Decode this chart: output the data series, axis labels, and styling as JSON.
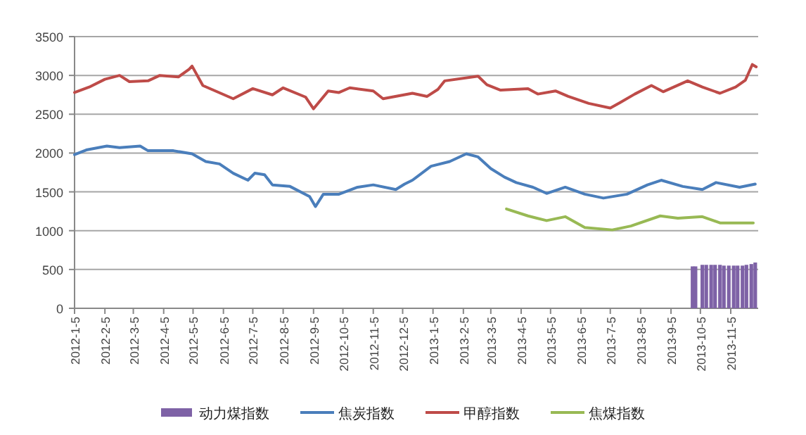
{
  "chart_data": {
    "type": "line",
    "ylim": [
      0,
      3500
    ],
    "yticks": [
      0,
      500,
      1000,
      1500,
      2000,
      2500,
      3000,
      3500
    ],
    "xlim": [
      "2012-01-05",
      "2013-12-03"
    ],
    "xticks": [
      {
        "value": "2012-01-05",
        "label": "2012-1-5"
      },
      {
        "value": "2012-02-05",
        "label": "2012-2-5"
      },
      {
        "value": "2012-03-05",
        "label": "2012-3-5"
      },
      {
        "value": "2012-04-05",
        "label": "2012-4-5"
      },
      {
        "value": "2012-05-05",
        "label": "2012-5-5"
      },
      {
        "value": "2012-06-05",
        "label": "2012-6-5"
      },
      {
        "value": "2012-07-05",
        "label": "2012-7-5"
      },
      {
        "value": "2012-08-05",
        "label": "2012-8-5"
      },
      {
        "value": "2012-09-05",
        "label": "2012-9-5"
      },
      {
        "value": "2012-10-05",
        "label": "2012-10-5"
      },
      {
        "value": "2012-11-05",
        "label": "2012-11-5"
      },
      {
        "value": "2012-12-05",
        "label": "2012-12-5"
      },
      {
        "value": "2013-01-05",
        "label": "2013-1-5"
      },
      {
        "value": "2013-02-05",
        "label": "2013-2-5"
      },
      {
        "value": "2013-03-05",
        "label": "2013-3-5"
      },
      {
        "value": "2013-04-05",
        "label": "2013-4-5"
      },
      {
        "value": "2013-05-05",
        "label": "2013-5-5"
      },
      {
        "value": "2013-06-05",
        "label": "2013-6-5"
      },
      {
        "value": "2013-07-05",
        "label": "2013-7-5"
      },
      {
        "value": "2013-08-05",
        "label": "2013-8-5"
      },
      {
        "value": "2013-09-05",
        "label": "2013-9-5"
      },
      {
        "value": "2013-10-05",
        "label": "2013-10-5"
      },
      {
        "value": "2013-11-05",
        "label": "2013-11-5"
      }
    ],
    "grid": "y",
    "legend": "bottom",
    "marker": "none",
    "series": [
      {
        "name": "动力煤指数",
        "type": "bar",
        "color": "#7e62a6",
        "x": [
          "2013-09-27",
          "2013-09-30",
          "2013-10-07",
          "2013-10-11",
          "2013-10-16",
          "2013-10-20",
          "2013-10-25",
          "2013-10-29",
          "2013-11-03",
          "2013-11-08",
          "2013-11-12",
          "2013-11-17",
          "2013-11-21",
          "2013-11-26",
          "2013-11-30"
        ],
        "values": [
          540,
          540,
          560,
          560,
          560,
          560,
          560,
          550,
          550,
          550,
          550,
          550,
          560,
          570,
          590
        ]
      },
      {
        "name": "焦炭指数",
        "color": "#4a7ebb",
        "x": [
          "2012-01-05",
          "2012-01-17",
          "2012-02-07",
          "2012-02-20",
          "2012-03-12",
          "2012-03-20",
          "2012-04-15",
          "2012-05-04",
          "2012-05-18",
          "2012-06-01",
          "2012-06-15",
          "2012-06-30",
          "2012-07-07",
          "2012-07-17",
          "2012-07-25",
          "2012-08-12",
          "2012-09-01",
          "2012-09-07",
          "2012-09-15",
          "2012-10-01",
          "2012-10-20",
          "2012-11-05",
          "2012-11-28",
          "2012-12-07",
          "2012-12-15",
          "2013-01-03",
          "2013-01-22",
          "2013-02-08",
          "2013-02-20",
          "2013-03-05",
          "2013-03-19",
          "2013-03-31",
          "2013-04-17",
          "2013-05-01",
          "2013-05-20",
          "2013-06-09",
          "2013-06-28",
          "2013-07-22",
          "2013-08-12",
          "2013-08-26",
          "2013-09-17",
          "2013-10-07",
          "2013-10-21",
          "2013-11-14",
          "2013-11-30"
        ],
        "values": [
          1980,
          2040,
          2090,
          2070,
          2090,
          2030,
          2030,
          1990,
          1890,
          1860,
          1740,
          1650,
          1740,
          1720,
          1590,
          1570,
          1440,
          1310,
          1470,
          1470,
          1560,
          1590,
          1530,
          1600,
          1650,
          1830,
          1890,
          1990,
          1950,
          1800,
          1690,
          1620,
          1560,
          1480,
          1560,
          1470,
          1420,
          1470,
          1590,
          1650,
          1570,
          1530,
          1620,
          1560,
          1600
        ]
      },
      {
        "name": "甲醇指数",
        "color": "#be4b48",
        "x": [
          "2012-01-05",
          "2012-01-20",
          "2012-02-05",
          "2012-02-20",
          "2012-03-01",
          "2012-03-20",
          "2012-04-01",
          "2012-04-20",
          "2012-05-01",
          "2012-05-04",
          "2012-05-15",
          "2012-06-15",
          "2012-07-05",
          "2012-07-25",
          "2012-08-05",
          "2012-08-28",
          "2012-09-05",
          "2012-09-20",
          "2012-10-01",
          "2012-10-12",
          "2012-11-05",
          "2012-11-15",
          "2012-12-15",
          "2012-12-30",
          "2013-01-10",
          "2013-01-17",
          "2013-02-20",
          "2013-03-01",
          "2013-03-15",
          "2013-04-12",
          "2013-04-22",
          "2013-05-10",
          "2013-05-23",
          "2013-06-13",
          "2013-07-05",
          "2013-07-15",
          "2013-07-30",
          "2013-08-16",
          "2013-08-28",
          "2013-09-22",
          "2013-10-07",
          "2013-10-25",
          "2013-11-10",
          "2013-11-20",
          "2013-11-27",
          "2013-12-01"
        ],
        "values": [
          2780,
          2850,
          2950,
          3000,
          2920,
          2930,
          3000,
          2980,
          3080,
          3120,
          2870,
          2700,
          2830,
          2750,
          2840,
          2720,
          2570,
          2800,
          2780,
          2840,
          2800,
          2700,
          2770,
          2730,
          2820,
          2930,
          2990,
          2880,
          2810,
          2830,
          2760,
          2800,
          2730,
          2640,
          2580,
          2650,
          2760,
          2870,
          2790,
          2930,
          2850,
          2770,
          2850,
          2940,
          3140,
          3110
        ]
      },
      {
        "name": "焦煤指数",
        "color": "#98b954",
        "x": [
          "2013-03-21",
          "2013-04-12",
          "2013-05-01",
          "2013-05-20",
          "2013-06-09",
          "2013-07-07",
          "2013-07-26",
          "2013-08-25",
          "2013-09-12",
          "2013-10-07",
          "2013-10-25",
          "2013-11-28"
        ],
        "values": [
          1280,
          1190,
          1130,
          1180,
          1040,
          1010,
          1060,
          1190,
          1160,
          1180,
          1100,
          1100
        ]
      }
    ]
  }
}
